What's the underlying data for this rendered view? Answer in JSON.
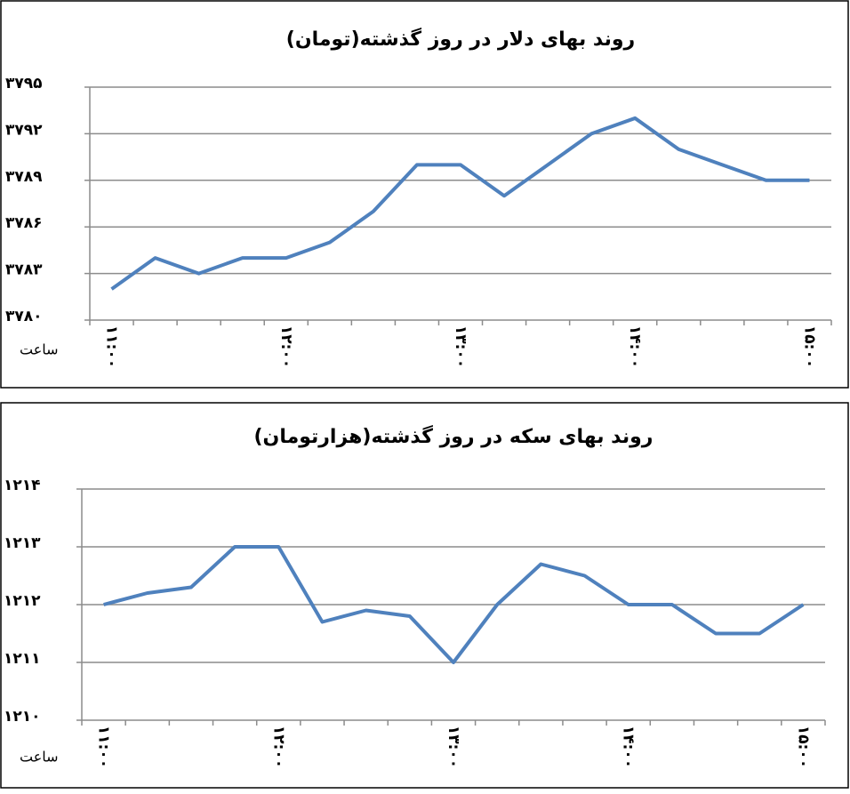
{
  "chart_data": [
    {
      "type": "line",
      "title": "روند بهای دلار در روز گذشته(تومان)",
      "x_label": "ساعت",
      "color": "#4f81bd",
      "grid": true,
      "categories": [
        "۱۱:۰۰",
        null,
        null,
        null,
        "۱۲:۰۰",
        null,
        null,
        null,
        "۱۳:۰۰",
        null,
        null,
        null,
        "۱۴:۰۰",
        null,
        null,
        null,
        "۱۵:۰۰"
      ],
      "values": [
        3782,
        3784,
        3783,
        3784,
        3784,
        3785,
        3787,
        3790,
        3790,
        3788,
        3790,
        3792,
        3793,
        3791,
        3790,
        3789,
        3789
      ],
      "ylim": [
        3780,
        3795
      ],
      "yticks": [
        {
          "value": 3780,
          "label": "۳۷۸۰"
        },
        {
          "value": 3783,
          "label": "۳۷۸۳"
        },
        {
          "value": 3786,
          "label": "۳۷۸۶"
        },
        {
          "value": 3789,
          "label": "۳۷۸۹"
        },
        {
          "value": 3792,
          "label": "۳۷۹۲"
        },
        {
          "value": 3795,
          "label": "۳۷۹۵"
        }
      ]
    },
    {
      "type": "line",
      "title": "روند بهای سکه در روز گذشته(هزارتومان)",
      "x_label": "ساعت",
      "color": "#4f81bd",
      "grid": true,
      "categories": [
        "۱۱:۰۰",
        null,
        null,
        null,
        "۱۲:۰۰",
        null,
        null,
        null,
        "۱۳:۰۰",
        null,
        null,
        null,
        "۱۴:۰۰",
        null,
        null,
        null,
        "۱۵:۰۰"
      ],
      "values": [
        1212,
        1212.2,
        1212.3,
        1213,
        1213,
        1211.7,
        1211.9,
        1211.8,
        1211,
        1212,
        1212.7,
        1212.5,
        1212,
        1212,
        1211.5,
        1211.5,
        1212
      ],
      "ylim": [
        1210,
        1214
      ],
      "yticks": [
        {
          "value": 1210,
          "label": "۱۲۱۰"
        },
        {
          "value": 1211,
          "label": "۱۲۱۱"
        },
        {
          "value": 1212,
          "label": "۱۲۱۲"
        },
        {
          "value": 1213,
          "label": "۱۲۱۳"
        },
        {
          "value": 1214,
          "label": "۱۲۱۴"
        }
      ]
    }
  ]
}
